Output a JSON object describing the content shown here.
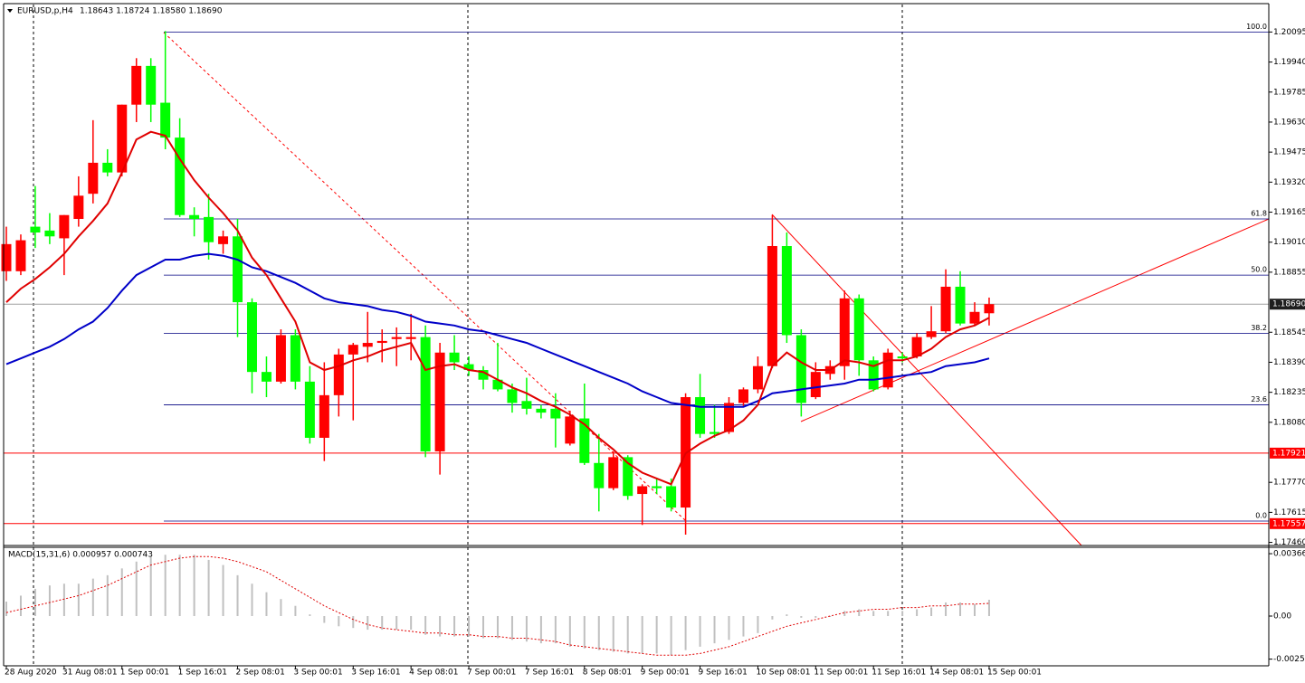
{
  "chart_data": {
    "type": "candlestick",
    "title": "EURUSD,p,H4",
    "ohlc_label": "1.18643 1.18724 1.18580 1.18690",
    "categories": [
      "28 Aug 2020",
      null,
      null,
      null,
      "31 Aug 08:01",
      null,
      null,
      null,
      "1 Sep 00:01",
      null,
      null,
      null,
      "1 Sep 16:01",
      null,
      null,
      null,
      "2 Sep 08:01",
      null,
      null,
      null,
      "3 Sep 00:01",
      null,
      null,
      null,
      "3 Sep 16:01",
      null,
      null,
      null,
      "4 Sep 08:01",
      null,
      null,
      null,
      "7 Sep 00:01",
      null,
      null,
      null,
      "7 Sep 16:01",
      null,
      null,
      null,
      "8 Sep 08:01",
      null,
      null,
      null,
      "9 Sep 00:01",
      null,
      null,
      null,
      "9 Sep 16:01",
      null,
      null,
      null,
      "10 Sep 08:01",
      null,
      null,
      null,
      "11 Sep 00:01",
      null,
      null,
      null,
      "11 Sep 16:01",
      null,
      null,
      null,
      "14 Sep 08:01",
      null,
      null,
      null,
      "15 Sep 00:01"
    ],
    "ohlc": [
      [
        1.1886,
        1.1909,
        1.1881,
        1.19
      ],
      [
        1.1886,
        1.1905,
        1.1884,
        1.1902
      ],
      [
        1.1909,
        1.193,
        1.1898,
        1.1906
      ],
      [
        1.1907,
        1.1916,
        1.19,
        1.1904
      ],
      [
        1.1903,
        1.1915,
        1.1884,
        1.1915
      ],
      [
        1.1913,
        1.1935,
        1.1909,
        1.1925
      ],
      [
        1.1926,
        1.1964,
        1.1921,
        1.1942
      ],
      [
        1.1942,
        1.1949,
        1.1935,
        1.1937
      ],
      [
        1.1937,
        1.1972,
        1.1935,
        1.1972
      ],
      [
        1.1972,
        1.1996,
        1.1963,
        1.1992
      ],
      [
        1.1992,
        1.1996,
        1.1963,
        1.1972
      ],
      [
        1.1973,
        1.201,
        1.1949,
        1.1955
      ],
      [
        1.1955,
        1.1965,
        1.1914,
        1.1915
      ],
      [
        1.1915,
        1.1919,
        1.1904,
        1.1913
      ],
      [
        1.1914,
        1.1926,
        1.1892,
        1.1901
      ],
      [
        1.19,
        1.1907,
        1.1895,
        1.1904
      ],
      [
        1.1904,
        1.1913,
        1.1852,
        1.187
      ],
      [
        1.187,
        1.1872,
        1.1823,
        1.1834
      ],
      [
        1.1834,
        1.1842,
        1.1821,
        1.1829
      ],
      [
        1.1829,
        1.1856,
        1.1828,
        1.1853
      ],
      [
        1.1853,
        1.1856,
        1.1825,
        1.1829
      ],
      [
        1.1829,
        1.1837,
        1.1797,
        1.18
      ],
      [
        1.18,
        1.1839,
        1.1788,
        1.1822
      ],
      [
        1.1822,
        1.1846,
        1.1811,
        1.1843
      ],
      [
        1.1843,
        1.1849,
        1.1809,
        1.1848
      ],
      [
        1.1847,
        1.1865,
        1.1839,
        1.1849
      ],
      [
        1.1849,
        1.1856,
        1.1839,
        1.185
      ],
      [
        1.1851,
        1.1857,
        1.1837,
        1.1852
      ],
      [
        1.1851,
        1.1864,
        1.184,
        1.1852
      ],
      [
        1.1852,
        1.1858,
        1.179,
        1.1793
      ],
      [
        1.1793,
        1.1849,
        1.1781,
        1.1844
      ],
      [
        1.1844,
        1.1853,
        1.1835,
        1.1839
      ],
      [
        1.1838,
        1.1842,
        1.1832,
        1.1835
      ],
      [
        1.1835,
        1.1837,
        1.1825,
        1.183
      ],
      [
        1.183,
        1.1849,
        1.1824,
        1.1825
      ],
      [
        1.1825,
        1.1828,
        1.1813,
        1.1818
      ],
      [
        1.1819,
        1.1831,
        1.1812,
        1.1815
      ],
      [
        1.1815,
        1.1817,
        1.181,
        1.1813
      ],
      [
        1.1815,
        1.1823,
        1.1795,
        1.181
      ],
      [
        1.1797,
        1.1814,
        1.1796,
        1.1811
      ],
      [
        1.181,
        1.1828,
        1.1786,
        1.1787
      ],
      [
        1.1787,
        1.1802,
        1.1762,
        1.1774
      ],
      [
        1.1774,
        1.1793,
        1.1773,
        1.179
      ],
      [
        1.179,
        1.1791,
        1.1768,
        1.177
      ],
      [
        1.1771,
        1.1776,
        1.1755,
        1.1775
      ],
      [
        1.1775,
        1.1779,
        1.1771,
        1.1774
      ],
      [
        1.1775,
        1.1779,
        1.1762,
        1.1764
      ],
      [
        1.1764,
        1.1823,
        1.175,
        1.1821
      ],
      [
        1.1821,
        1.1833,
        1.18,
        1.1802
      ],
      [
        1.1803,
        1.1817,
        1.18,
        1.1802
      ],
      [
        1.1803,
        1.1821,
        1.1802,
        1.1818
      ],
      [
        1.1818,
        1.1826,
        1.1816,
        1.1825
      ],
      [
        1.1825,
        1.1842,
        1.1823,
        1.1837
      ],
      [
        1.1837,
        1.1915,
        1.1836,
        1.1899
      ],
      [
        1.1899,
        1.1906,
        1.1849,
        1.1853
      ],
      [
        1.1853,
        1.1856,
        1.1811,
        1.1818
      ],
      [
        1.1821,
        1.1839,
        1.182,
        1.1834
      ],
      [
        1.1833,
        1.184,
        1.183,
        1.1837
      ],
      [
        1.1837,
        1.1876,
        1.183,
        1.1872
      ],
      [
        1.1872,
        1.1874,
        1.1832,
        1.184
      ],
      [
        1.184,
        1.1842,
        1.1824,
        1.1825
      ],
      [
        1.1826,
        1.1846,
        1.1825,
        1.1844
      ],
      [
        1.1842,
        1.1844,
        1.1839,
        1.1841
      ],
      [
        1.1842,
        1.1854,
        1.1841,
        1.1852
      ],
      [
        1.1852,
        1.1868,
        1.1851,
        1.1855
      ],
      [
        1.1855,
        1.1887,
        1.1854,
        1.1878
      ],
      [
        1.1878,
        1.1886,
        1.1858,
        1.1859
      ],
      [
        1.1859,
        1.187,
        1.1858,
        1.1865
      ],
      [
        1.18643,
        1.18724,
        1.1858,
        1.1869
      ]
    ],
    "up_color": "#ff0000",
    "down_color": "#00ff00",
    "series": [
      {
        "color": "#0000c8",
        "values": [
          1.1838,
          1.1841,
          1.1844,
          1.1847,
          1.1851,
          1.1856,
          1.186,
          1.1867,
          1.1876,
          1.1884,
          1.1888,
          1.1892,
          1.1892,
          1.1894,
          1.1895,
          1.1894,
          1.1892,
          1.1888,
          1.1886,
          1.1883,
          1.188,
          1.1876,
          1.1872,
          1.187,
          1.1869,
          1.1868,
          1.1866,
          1.1865,
          1.1863,
          1.186,
          1.1859,
          1.1858,
          1.1856,
          1.1855,
          1.1853,
          1.1851,
          1.1849,
          1.1846,
          1.1843,
          1.184,
          1.1837,
          1.1834,
          1.1831,
          1.1828,
          1.1824,
          1.1821,
          1.1818,
          1.1817,
          1.1816,
          1.1816,
          1.1816,
          1.1816,
          1.1819,
          1.1823,
          1.1824,
          1.1825,
          1.1826,
          1.1827,
          1.1828,
          1.183,
          1.183,
          1.1831,
          1.1832,
          1.1833,
          1.1834,
          1.1837,
          1.1838,
          1.1839,
          1.1841
        ]
      },
      {
        "color": "#e00000",
        "values": [
          1.187,
          1.1877,
          1.1882,
          1.1888,
          1.1895,
          1.1904,
          1.1912,
          1.1921,
          1.1937,
          1.1954,
          1.1958,
          1.1956,
          1.1944,
          1.1933,
          1.1924,
          1.1916,
          1.1907,
          1.1893,
          1.1884,
          1.1872,
          1.186,
          1.1839,
          1.1835,
          1.1837,
          1.184,
          1.1842,
          1.1845,
          1.1847,
          1.1849,
          1.1835,
          1.1837,
          1.1838,
          1.1835,
          1.1834,
          1.183,
          1.1826,
          1.1823,
          1.1819,
          1.1816,
          1.1812,
          1.1807,
          1.18,
          1.1794,
          1.1787,
          1.1782,
          1.1779,
          1.1776,
          1.1792,
          1.1797,
          1.1801,
          1.1804,
          1.1809,
          1.1817,
          1.1837,
          1.1844,
          1.1839,
          1.1835,
          1.1835,
          1.184,
          1.1839,
          1.1837,
          1.184,
          1.184,
          1.1842,
          1.1846,
          1.1852,
          1.1856,
          1.1858,
          1.1862
        ]
      }
    ],
    "ylim": [
      1.17444,
      1.20237
    ],
    "yticks": [
      1.20095,
      {
        "value": 1.1994,
        "label": "1.19940"
      },
      1.19785,
      {
        "value": 1.1963,
        "label": "1.19630"
      },
      1.19475,
      {
        "value": 1.1932,
        "label": "1.19320"
      },
      1.19165,
      {
        "value": 1.1901,
        "label": "1.19010"
      },
      1.18855,
      1.18545,
      {
        "value": 1.1839,
        "label": "1.18390"
      },
      1.18235,
      {
        "value": 1.1808,
        "label": "1.18080"
      },
      {
        "value": 1.1777,
        "label": "1.17770"
      },
      1.17615,
      {
        "value": 1.1746,
        "label": "1.17460"
      }
    ],
    "fibo": [
      {
        "label": "100.0",
        "value": 1.20095
      },
      {
        "label": "61.8",
        "value": 1.1913
      },
      {
        "label": "50.0",
        "value": 1.1884
      },
      {
        "label": "38.2",
        "value": 1.1854
      },
      {
        "label": "23.6",
        "value": 1.1817
      },
      {
        "label": "0.0",
        "value": 1.1757
      }
    ],
    "fibo_color": "#000080",
    "price_lines": [
      {
        "value": 1.1869,
        "label": "1.18690",
        "color": "#a0a0a0",
        "box": "#1e1e1e"
      },
      {
        "value": 1.17921,
        "label": "1.17921",
        "color": "#ff0000",
        "box": "#ff0000"
      },
      {
        "value": 1.17557,
        "label": "1.17557",
        "color": "#ff0000",
        "box": "#ff0000"
      }
    ],
    "macd": {
      "label": "MACD(15,31,6) 0.000957 0.000743",
      "histogram": [
        0.00085,
        0.0012,
        0.0016,
        0.0018,
        0.0019,
        0.0019,
        0.0022,
        0.0024,
        0.0028,
        0.0032,
        0.0035,
        0.0036,
        0.0036,
        0.0036,
        0.0033,
        0.003,
        0.0024,
        0.0019,
        0.0014,
        0.001,
        0.0006,
        0.0001,
        -0.0004,
        -0.0006,
        -0.0007,
        -0.0008,
        -0.0008,
        -0.0008,
        -0.0008,
        -0.0011,
        -0.0012,
        -0.0012,
        -0.0012,
        -0.0013,
        -0.0013,
        -0.0014,
        -0.0015,
        -0.0016,
        -0.0016,
        -0.0018,
        -0.0019,
        -0.002,
        -0.0021,
        -0.0022,
        -0.0022,
        -0.0022,
        -0.0023,
        -0.002,
        -0.0018,
        -0.0016,
        -0.0014,
        -0.0012,
        -0.001,
        -0.0002,
        0.0001,
        -0.0001,
        -0.0001,
        -5e-05,
        0.0003,
        0.0004,
        0.0003,
        0.0003,
        0.0003,
        0.0004,
        0.0005,
        0.0008,
        0.0008,
        0.0007,
        0.000957
      ],
      "signal": [
        0.0002,
        0.0004,
        0.0006,
        0.0008,
        0.001,
        0.0012,
        0.0015,
        0.0018,
        0.0022,
        0.0026,
        0.003,
        0.0032,
        0.0034,
        0.0035,
        0.0035,
        0.0034,
        0.0032,
        0.0029,
        0.0026,
        0.0021,
        0.0016,
        0.0011,
        0.0006,
        0.0002,
        -0.0002,
        -0.0005,
        -0.0007,
        -0.0008,
        -0.0009,
        -0.001,
        -0.001,
        -0.0011,
        -0.0011,
        -0.0012,
        -0.0012,
        -0.0013,
        -0.0013,
        -0.0014,
        -0.0015,
        -0.0017,
        -0.0018,
        -0.0019,
        -0.002,
        -0.0021,
        -0.0022,
        -0.0023,
        -0.0023,
        -0.0023,
        -0.0022,
        -0.002,
        -0.0018,
        -0.0015,
        -0.0012,
        -0.0009,
        -0.0006,
        -0.0004,
        -0.0002,
        0.0,
        0.0002,
        0.0003,
        0.0004,
        0.0004,
        0.0005,
        0.0005,
        0.0006,
        0.0006,
        0.0007,
        0.0007,
        0.000743
      ],
      "ylim": [
        -0.00287,
        0.00404
      ],
      "yticks": [
        0.003665,
        {
          "value": 0,
          "label": "0.00"
        },
        -0.00253
      ],
      "hist_color": "#c0c0c0",
      "signal_color": "#e00000"
    }
  }
}
